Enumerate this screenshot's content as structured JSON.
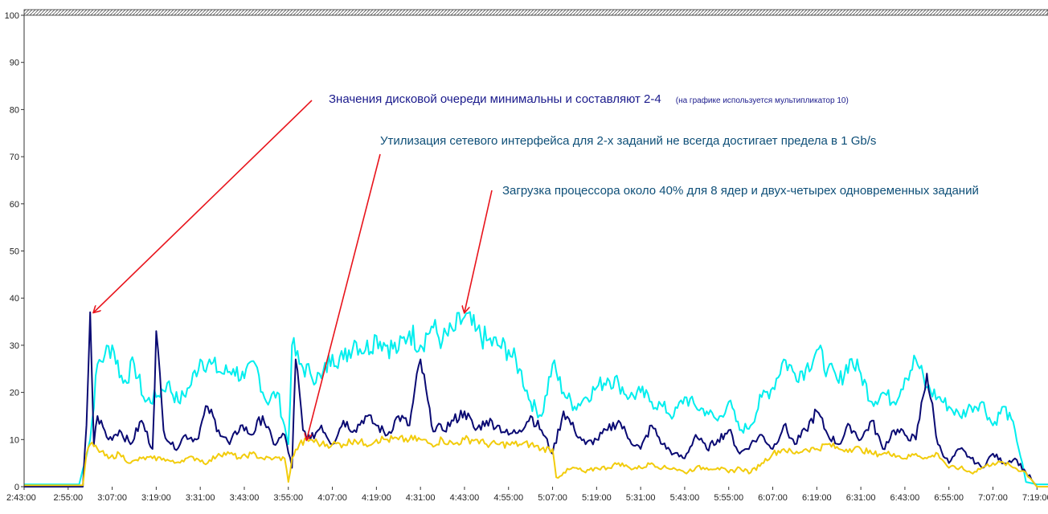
{
  "chart_data": {
    "type": "line",
    "title": "",
    "xlabel": "",
    "ylabel": "",
    "ylim": [
      0,
      100
    ],
    "yticks": [
      0,
      10,
      20,
      30,
      40,
      50,
      60,
      70,
      80,
      90,
      100
    ],
    "xlim_minutes": [
      163,
      442
    ],
    "xticks": [
      "2:43:00",
      "2:55:00",
      "3:07:00",
      "3:19:00",
      "3:31:00",
      "3:43:00",
      "3:55:00",
      "4:07:00",
      "4:19:00",
      "4:31:00",
      "4:43:00",
      "4:55:00",
      "5:07:00",
      "5:19:00",
      "5:31:00",
      "5:43:00",
      "5:55:00",
      "6:07:00",
      "6:19:00",
      "6:31:00",
      "6:43:00",
      "6:55:00",
      "7:07:00",
      "7:19:00"
    ],
    "grid": false,
    "legend": "none",
    "series": [
      {
        "key": "cpu",
        "color": "#00eeee",
        "x": [
          "2:43:00",
          "2:58:00",
          "3:01:00",
          "3:03:00",
          "3:05:00",
          "3:07:00",
          "3:10:00",
          "3:13:00",
          "3:16:00",
          "3:19:00",
          "3:22:00",
          "3:25:00",
          "3:28:00",
          "3:31:00",
          "3:34:00",
          "3:37:00",
          "3:40:00",
          "3:43:00",
          "3:46:00",
          "3:49:00",
          "3:52:00",
          "3:55:00",
          "3:56:00",
          "3:58:00",
          "4:01:00",
          "4:04:00",
          "4:07:00",
          "4:10:00",
          "4:13:00",
          "4:16:00",
          "4:19:00",
          "4:22:00",
          "4:25:00",
          "4:28:00",
          "4:31:00",
          "4:34:00",
          "4:37:00",
          "4:40:00",
          "4:43:00",
          "4:46:00",
          "4:49:00",
          "4:52:00",
          "4:55:00",
          "4:58:00",
          "5:01:00",
          "5:04:00",
          "5:07:00",
          "5:10:00",
          "5:13:00",
          "5:16:00",
          "5:19:00",
          "5:22:00",
          "5:25:00",
          "5:28:00",
          "5:31:00",
          "5:34:00",
          "5:37:00",
          "5:40:00",
          "5:43:00",
          "5:46:00",
          "5:49:00",
          "5:52:00",
          "5:55:00",
          "5:58:00",
          "6:01:00",
          "6:04:00",
          "6:07:00",
          "6:10:00",
          "6:13:00",
          "6:16:00",
          "6:19:00",
          "6:22:00",
          "6:25:00",
          "6:28:00",
          "6:31:00",
          "6:34:00",
          "6:37:00",
          "6:40:00",
          "6:43:00",
          "6:46:00",
          "6:49:00",
          "6:52:00",
          "6:55:00",
          "6:58:00",
          "7:01:00",
          "7:04:00",
          "7:07:00",
          "7:10:00",
          "7:13:00",
          "7:16:00",
          "7:19:00",
          "7:22:00"
        ],
        "values": [
          0.5,
          0.5,
          10,
          26,
          28,
          30,
          22,
          26,
          18,
          19,
          22,
          18,
          21,
          27,
          26,
          24,
          25,
          23,
          26,
          18,
          20,
          9,
          30,
          26,
          24,
          23,
          28,
          27,
          31,
          29,
          32,
          30,
          29,
          33,
          30,
          34,
          31,
          33,
          36,
          33,
          31,
          30,
          29,
          25,
          18,
          15,
          26,
          20,
          17,
          19,
          21,
          23,
          22,
          19,
          20,
          18,
          17,
          15,
          19,
          17,
          16,
          14,
          18,
          12,
          13,
          19,
          21,
          27,
          24,
          25,
          29,
          25,
          22,
          27,
          24,
          18,
          20,
          18,
          23,
          27,
          21,
          19,
          17,
          15,
          17,
          18,
          13,
          17,
          12,
          1,
          0.5,
          0.5
        ]
      },
      {
        "key": "disk",
        "color": "#0a0a73",
        "x": [
          "2:43:00",
          "2:59:00",
          "3:00:00",
          "3:01:00",
          "3:02:00",
          "3:03:00",
          "3:06:00",
          "3:09:00",
          "3:12:00",
          "3:15:00",
          "3:18:00",
          "3:19:00",
          "3:21:00",
          "3:24:00",
          "3:27:00",
          "3:30:00",
          "3:33:00",
          "3:36:00",
          "3:39:00",
          "3:42:00",
          "3:45:00",
          "3:48:00",
          "3:51:00",
          "3:54:00",
          "3:56:00",
          "3:57:00",
          "3:59:00",
          "4:01:00",
          "4:04:00",
          "4:07:00",
          "4:10:00",
          "4:13:00",
          "4:16:00",
          "4:19:00",
          "4:22:00",
          "4:25:00",
          "4:28:00",
          "4:31:00",
          "4:34:00",
          "4:37:00",
          "4:40:00",
          "4:43:00",
          "4:46:00",
          "4:49:00",
          "4:52:00",
          "4:55:00",
          "4:58:00",
          "5:01:00",
          "5:04:00",
          "5:07:00",
          "5:10:00",
          "5:13:00",
          "5:16:00",
          "5:19:00",
          "5:22:00",
          "5:25:00",
          "5:28:00",
          "5:31:00",
          "5:34:00",
          "5:37:00",
          "5:40:00",
          "5:43:00",
          "5:46:00",
          "5:49:00",
          "5:52:00",
          "5:55:00",
          "5:58:00",
          "6:01:00",
          "6:04:00",
          "6:07:00",
          "6:10:00",
          "6:13:00",
          "6:16:00",
          "6:19:00",
          "6:22:00",
          "6:25:00",
          "6:28:00",
          "6:31:00",
          "6:34:00",
          "6:37:00",
          "6:40:00",
          "6:43:00",
          "6:46:00",
          "6:49:00",
          "6:52:00",
          "6:55:00",
          "6:58:00",
          "7:01:00",
          "7:04:00",
          "7:07:00",
          "7:10:00",
          "7:13:00",
          "7:16:00",
          "7:19:00",
          "7:22:00"
        ],
        "values": [
          0,
          0,
          13,
          37,
          9,
          15,
          10,
          12,
          9,
          14,
          8,
          33,
          12,
          8,
          11,
          10,
          17,
          12,
          9,
          13,
          11,
          15,
          9,
          11,
          4,
          27,
          12,
          10,
          13,
          9,
          14,
          12,
          15,
          13,
          11,
          15,
          13,
          27,
          13,
          12,
          14,
          16,
          12,
          14,
          13,
          11,
          12,
          15,
          12,
          7,
          16,
          12,
          9,
          10,
          12,
          14,
          10,
          8,
          13,
          9,
          7,
          6,
          11,
          8,
          10,
          12,
          7,
          9,
          11,
          8,
          13,
          9,
          12,
          16,
          11,
          9,
          13,
          10,
          14,
          8,
          12,
          11,
          10,
          24,
          9,
          5,
          8,
          6,
          4,
          7,
          5,
          6,
          3,
          0,
          0
        ]
      },
      {
        "key": "network",
        "color": "#f2cc0c",
        "x": [
          "2:43:00",
          "2:59:00",
          "3:00:00",
          "3:01:00",
          "3:03:00",
          "3:06:00",
          "3:09:00",
          "3:12:00",
          "3:15:00",
          "3:18:00",
          "3:21:00",
          "3:24:00",
          "3:27:00",
          "3:30:00",
          "3:33:00",
          "3:36:00",
          "3:39:00",
          "3:42:00",
          "3:45:00",
          "3:48:00",
          "3:51:00",
          "3:54:00",
          "3:55:00",
          "3:56:00",
          "3:58:00",
          "4:01:00",
          "4:04:00",
          "4:07:00",
          "4:10:00",
          "4:13:00",
          "4:16:00",
          "4:19:00",
          "4:22:00",
          "4:25:00",
          "4:28:00",
          "4:31:00",
          "4:34:00",
          "4:37:00",
          "4:40:00",
          "4:43:00",
          "4:46:00",
          "4:49:00",
          "4:52:00",
          "4:55:00",
          "4:58:00",
          "5:01:00",
          "5:04:00",
          "5:07:00",
          "5:08:00",
          "5:10:00",
          "5:13:00",
          "5:16:00",
          "5:19:00",
          "5:22:00",
          "5:25:00",
          "5:28:00",
          "5:31:00",
          "5:34:00",
          "5:37:00",
          "5:40:00",
          "5:43:00",
          "5:46:00",
          "5:49:00",
          "5:52:00",
          "5:55:00",
          "5:58:00",
          "6:01:00",
          "6:04:00",
          "6:07:00",
          "6:10:00",
          "6:13:00",
          "6:16:00",
          "6:19:00",
          "6:22:00",
          "6:25:00",
          "6:28:00",
          "6:31:00",
          "6:34:00",
          "6:37:00",
          "6:40:00",
          "6:43:00",
          "6:46:00",
          "6:49:00",
          "6:52:00",
          "6:55:00",
          "6:58:00",
          "7:01:00",
          "7:04:00",
          "7:07:00",
          "7:10:00",
          "7:13:00",
          "7:16:00",
          "7:19:00",
          "7:22:00"
        ],
        "values": [
          0.3,
          0.3,
          7,
          9,
          8,
          6,
          7,
          5,
          6,
          6,
          6,
          5,
          6,
          6,
          5,
          7,
          7,
          6,
          7,
          6,
          6,
          6,
          1,
          6,
          9,
          10,
          9,
          9,
          9,
          10,
          9,
          10,
          10,
          10,
          10,
          10,
          9,
          10,
          9,
          10,
          10,
          9,
          9,
          9,
          9,
          9,
          8,
          8,
          2,
          3,
          4,
          3,
          4,
          4,
          5,
          4,
          4,
          5,
          4,
          4,
          3,
          4,
          4,
          4,
          3,
          4,
          3,
          5,
          7,
          8,
          7,
          8,
          8,
          9,
          8,
          8,
          8,
          7,
          7,
          7,
          6,
          7,
          6,
          7,
          4,
          4,
          3,
          4,
          5,
          5,
          4,
          3,
          0,
          0
        ]
      }
    ],
    "annotations": [
      {
        "text": "Значения дисковой очереди минимальны и составляют 2-4",
        "note": "(на графике используется мультипликатор 10)",
        "color": "#1a1a8c",
        "points_to": {
          "x": "3:02:00",
          "y": 37
        }
      },
      {
        "text": "Утилизация сетевого интерфейса для 2-х заданий не всегда достигает предела в 1 Gb/s",
        "color": "#0e4f78",
        "points_to": {
          "x": "4:00:00",
          "y": 10
        }
      },
      {
        "text": "Загрузка процессора около 40% для 8 ядер и двух-четырех одновременных заданий",
        "color": "#0e4f78",
        "points_to": {
          "x": "4:43:00",
          "y": 37
        }
      }
    ]
  }
}
